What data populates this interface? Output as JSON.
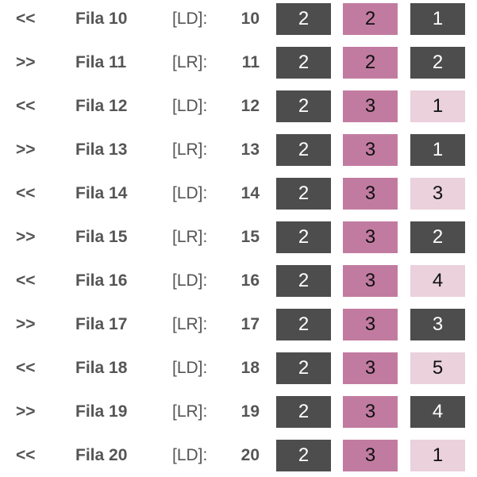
{
  "colors": {
    "dark": "#4d4d4d",
    "pink": "#c27ba0",
    "light": "#ead1dc"
  },
  "rows": [
    {
      "dir": "<<",
      "fila": "Fila 10",
      "tag": "[LD]:",
      "num": "10",
      "v1": "2",
      "v2": "2",
      "v3": "1",
      "s3": "dark"
    },
    {
      "dir": ">>",
      "fila": "Fila 11",
      "tag": "[LR]:",
      "num": "11",
      "v1": "2",
      "v2": "2",
      "v3": "2",
      "s3": "dark"
    },
    {
      "dir": "<<",
      "fila": "Fila 12",
      "tag": "[LD]:",
      "num": "12",
      "v1": "2",
      "v2": "3",
      "v3": "1",
      "s3": "light"
    },
    {
      "dir": ">>",
      "fila": "Fila 13",
      "tag": "[LR]:",
      "num": "13",
      "v1": "2",
      "v2": "3",
      "v3": "1",
      "s3": "dark"
    },
    {
      "dir": "<<",
      "fila": "Fila 14",
      "tag": "[LD]:",
      "num": "14",
      "v1": "2",
      "v2": "3",
      "v3": "3",
      "s3": "light"
    },
    {
      "dir": ">>",
      "fila": "Fila 15",
      "tag": "[LR]:",
      "num": "15",
      "v1": "2",
      "v2": "3",
      "v3": "2",
      "s3": "dark"
    },
    {
      "dir": "<<",
      "fila": "Fila 16",
      "tag": "[LD]:",
      "num": "16",
      "v1": "2",
      "v2": "3",
      "v3": "4",
      "s3": "light"
    },
    {
      "dir": ">>",
      "fila": "Fila 17",
      "tag": "[LR]:",
      "num": "17",
      "v1": "2",
      "v2": "3",
      "v3": "3",
      "s3": "dark"
    },
    {
      "dir": "<<",
      "fila": "Fila 18",
      "tag": "[LD]:",
      "num": "18",
      "v1": "2",
      "v2": "3",
      "v3": "5",
      "s3": "light"
    },
    {
      "dir": ">>",
      "fila": "Fila 19",
      "tag": "[LR]:",
      "num": "19",
      "v1": "2",
      "v2": "3",
      "v3": "4",
      "s3": "dark"
    },
    {
      "dir": "<<",
      "fila": "Fila 20",
      "tag": "[LD]:",
      "num": "20",
      "v1": "2",
      "v2": "3",
      "v3": "1",
      "s3": "light"
    }
  ]
}
